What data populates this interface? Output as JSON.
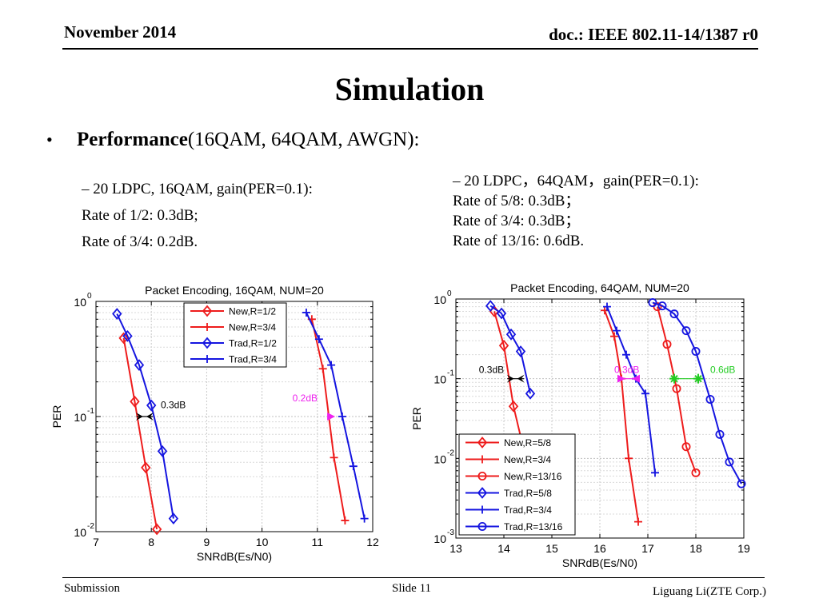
{
  "header": {
    "date": "November 2014",
    "doc": "doc.: IEEE 802.11-14/1387 r0"
  },
  "slide_title": "Simulation",
  "bullet": {
    "marker": "•",
    "bold": "Performance",
    "rest": "(16QAM, 64QAM, AWGN):"
  },
  "left_text": [
    "–  20 LDPC, 16QAM, gain(PER=0.1):",
    "Rate of 1/2: 0.3dB;",
    "Rate of 3/4: 0.2dB."
  ],
  "right_text": [
    "–  20 LDPC，64QAM，gain(PER=0.1):",
    "Rate of 5/8: 0.3dB；",
    "Rate of 3/4: 0.3dB；",
    "Rate of 13/16: 0.6dB."
  ],
  "footer": {
    "left": "Submission",
    "center": "Slide 11",
    "right": "Liguang Li(ZTE Corp.)"
  },
  "colors": {
    "red": "#ee1c1c",
    "blue": "#1515e0",
    "magenta": "#ee22ee",
    "green": "#22cc22",
    "black": "#000000"
  },
  "chart_data": [
    {
      "type": "line",
      "title": "Packet Encoding, 16QAM, NUM=20",
      "xlabel": "SNRdB(Es/N0)",
      "ylabel": "PER",
      "yscale": "log",
      "xlim": [
        7,
        12
      ],
      "ylim": [
        0.01,
        1
      ],
      "xticks": [
        7,
        8,
        9,
        10,
        11,
        12
      ],
      "yticks": [
        {
          "value": 1,
          "base": "10",
          "exp": "0"
        },
        {
          "value": 0.1,
          "base": "10",
          "exp": "-1"
        },
        {
          "value": 0.01,
          "base": "10",
          "exp": "-2"
        }
      ],
      "grid": true,
      "legend_position": "top-center",
      "series": [
        {
          "name": "New,R=1/2",
          "color": "red",
          "marker": "diamond",
          "x": [
            7.5,
            7.7,
            7.9,
            8.1
          ],
          "y": [
            0.48,
            0.135,
            0.036,
            0.0105
          ]
        },
        {
          "name": "New,R=3/4",
          "color": "red",
          "marker": "plus",
          "x": [
            10.9,
            11.1,
            11.3,
            11.5
          ],
          "y": [
            0.7,
            0.26,
            0.044,
            0.0125
          ]
        },
        {
          "name": "Trad,R=1/2",
          "color": "blue",
          "marker": "diamond",
          "x": [
            7.38,
            7.57,
            7.78,
            8.0,
            8.2,
            8.4
          ],
          "y": [
            0.78,
            0.5,
            0.28,
            0.125,
            0.05,
            0.013
          ]
        },
        {
          "name": "Trad,R=3/4",
          "color": "blue",
          "marker": "plus",
          "x": [
            10.8,
            11.03,
            11.25,
            11.45,
            11.65,
            11.85
          ],
          "y": [
            0.8,
            0.47,
            0.28,
            0.1,
            0.037,
            0.013
          ]
        }
      ],
      "annotations": [
        {
          "text": "0.3dB",
          "x": 8.17,
          "y": 0.118,
          "color": "black",
          "arrow_x": [
            7.73,
            8.03
          ],
          "arrow_y": 0.1
        },
        {
          "text": "0.2dB",
          "x": 10.55,
          "y": 0.135,
          "color": "magenta",
          "marker_x": 11.25,
          "marker_y": 0.1
        }
      ]
    },
    {
      "type": "line",
      "title": "Packet Encoding, 64QAM, NUM=20",
      "xlabel": "SNRdB(Es/N0)",
      "ylabel": "PER",
      "yscale": "log",
      "xlim": [
        13,
        19
      ],
      "ylim": [
        0.001,
        1
      ],
      "xticks": [
        13,
        14,
        15,
        16,
        17,
        18,
        19
      ],
      "yticks": [
        {
          "value": 1,
          "base": "10",
          "exp": "0"
        },
        {
          "value": 0.1,
          "base": "10",
          "exp": "-1"
        },
        {
          "value": 0.01,
          "base": "10",
          "exp": "-2"
        },
        {
          "value": 0.001,
          "base": "10",
          "exp": "-3"
        }
      ],
      "grid": true,
      "legend_position": "bottom-left",
      "series": [
        {
          "name": "New,R=5/8",
          "color": "red",
          "marker": "diamond",
          "x": [
            13.8,
            14.0,
            14.2,
            14.4
          ],
          "y": [
            0.7,
            0.26,
            0.045,
            0.014
          ]
        },
        {
          "name": "New,R=3/4",
          "color": "red",
          "marker": "plus",
          "x": [
            16.1,
            16.3,
            16.45,
            16.6,
            16.8
          ],
          "y": [
            0.72,
            0.34,
            0.1,
            0.01,
            0.0016
          ]
        },
        {
          "name": "New,R=13/16",
          "color": "red",
          "marker": "circle",
          "x": [
            17.2,
            17.4,
            17.6,
            17.8,
            18.0
          ],
          "y": [
            0.8,
            0.27,
            0.075,
            0.014,
            0.0066
          ]
        },
        {
          "name": "Trad,R=5/8",
          "color": "blue",
          "marker": "diamond",
          "x": [
            13.72,
            13.95,
            14.15,
            14.35,
            14.55
          ],
          "y": [
            0.82,
            0.66,
            0.36,
            0.22,
            0.065
          ]
        },
        {
          "name": "Trad,R=3/4",
          "color": "blue",
          "marker": "plus",
          "x": [
            16.15,
            16.35,
            16.55,
            16.75,
            16.95,
            17.15
          ],
          "y": [
            0.8,
            0.4,
            0.2,
            0.1,
            0.065,
            0.0066
          ]
        },
        {
          "name": "Trad,R=13/16",
          "color": "blue",
          "marker": "circle",
          "x": [
            17.1,
            17.3,
            17.55,
            17.8,
            18.0,
            18.3,
            18.5,
            18.7,
            18.95
          ],
          "y": [
            0.9,
            0.82,
            0.65,
            0.4,
            0.22,
            0.055,
            0.02,
            0.009,
            0.0048
          ]
        }
      ],
      "annotations": [
        {
          "text": "0.3dB",
          "x": 13.48,
          "y": 0.118,
          "color": "black",
          "arrow_x": [
            14.07,
            14.42
          ],
          "arrow_y": 0.1
        },
        {
          "text": "0.3dB",
          "x": 16.3,
          "y": 0.118,
          "color": "magenta",
          "marker_x": 16.45,
          "marker_y": 0.1,
          "marker2_x": 16.75,
          "marker2_y": 0.1
        },
        {
          "text": "0.6dB",
          "x": 18.3,
          "y": 0.118,
          "color": "green",
          "marker_x": 17.55,
          "marker_y": 0.1,
          "marker2_x": 18.05,
          "marker2_y": 0.1
        }
      ]
    }
  ]
}
